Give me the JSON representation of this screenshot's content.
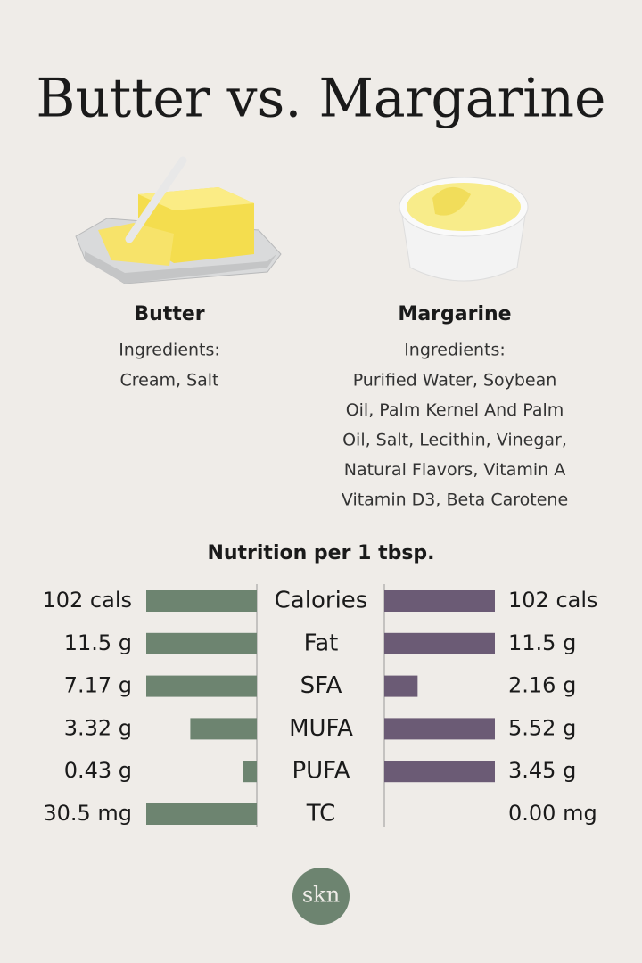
{
  "title": "Butter vs. Margarine",
  "products": [
    {
      "ingredients_label": "Ingredients:",
      "ingredients": [
        "Cream, Salt"
      ]
    },
    {
      "ingredients_label": "Ingredients:",
      "ingredients": [
        "Purified Water, Soybean",
        "Oil, Palm Kernel And Palm",
        "Oil, Salt, Lecithin, Vinegar,",
        "Natural Flavors, Vitamin A",
        "Vitamin D3, Beta Carotene"
      ]
    }
  ],
  "chart_data": {
    "type": "butterfly",
    "title": "Nutrition per 1 tbsp.",
    "categories": [
      "Calories",
      "Fat",
      "SFA",
      "MUFA",
      "PUFA",
      "TC"
    ],
    "series": [
      {
        "name": "Butter",
        "color": "#6d8470",
        "values": [
          102,
          11.5,
          7.17,
          3.32,
          0.43,
          30.5
        ],
        "value_labels": [
          "102 cals",
          "11.5 g",
          "7.17 g",
          "3.32 g",
          "0.43 g",
          "30.5 mg"
        ]
      },
      {
        "name": "Margarine",
        "color": "#6b5b75",
        "values": [
          102,
          11.5,
          2.16,
          5.52,
          3.45,
          0
        ],
        "value_labels": [
          "102 cals",
          "11.5 g",
          "2.16 g",
          "5.52 g",
          "3.45 g",
          "0.00 mg"
        ]
      }
    ]
  },
  "logo": "skn"
}
